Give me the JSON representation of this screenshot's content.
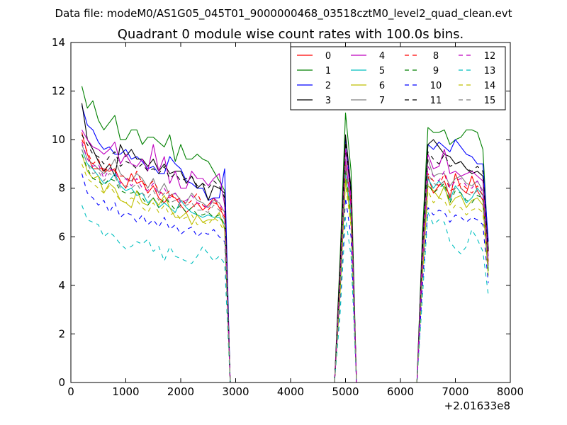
{
  "chart_data": {
    "type": "line",
    "suptitle": "Data file: modeM0/AS1G05_045T01_9000000468_03518cztM0_level2_quad_clean.evt",
    "title": "Quadrant 0 module wise count rates with 100.0s bins.",
    "xlabel": "",
    "ylabel": "",
    "x_offset_label": "+2.01633e8",
    "xlim": [
      0,
      8000
    ],
    "ylim": [
      0,
      14
    ],
    "xticks": [
      0,
      1000,
      2000,
      3000,
      4000,
      5000,
      6000,
      7000,
      8000
    ],
    "yticks": [
      0,
      2,
      4,
      6,
      8,
      10,
      12,
      14
    ],
    "grid": false,
    "legend_position": "top-right",
    "x": [
      200,
      300,
      400,
      500,
      600,
      700,
      800,
      900,
      1000,
      1100,
      1200,
      1300,
      1400,
      1500,
      1600,
      1700,
      1800,
      1900,
      2000,
      2100,
      2200,
      2300,
      2400,
      2500,
      2600,
      2700,
      2800,
      2900,
      3000,
      4800,
      4900,
      5000,
      5100,
      5200,
      6300,
      6400,
      6500,
      6600,
      6700,
      6800,
      6900,
      7000,
      7100,
      7200,
      7300,
      7400,
      7500,
      7600
    ],
    "series": [
      {
        "name": "0",
        "color": "#ff0000",
        "dash": "solid",
        "values": [
          10.3,
          9.4,
          8.8,
          8.8,
          8.8,
          8.7,
          8.8,
          8.3,
          8.0,
          8.6,
          8.2,
          8.3,
          7.8,
          8.1,
          7.6,
          7.4,
          7.7,
          7.6,
          7.3,
          7.0,
          7.2,
          7.4,
          7.1,
          7.3,
          7.6,
          7.2,
          6.8,
          0.0,
          0.0,
          0.0,
          4.0,
          9.0,
          7.4,
          0.0,
          0.0,
          4.9,
          8.5,
          7.8,
          8.1,
          8.3,
          7.6,
          8.6,
          8.0,
          7.8,
          8.5,
          7.9,
          7.5,
          4.8
        ]
      },
      {
        "name": "1",
        "color": "#008000",
        "dash": "solid",
        "values": [
          12.2,
          11.3,
          11.6,
          10.8,
          10.4,
          10.7,
          11.0,
          10.0,
          10.0,
          10.4,
          10.4,
          9.8,
          10.1,
          10.1,
          9.9,
          9.7,
          10.2,
          9.1,
          9.8,
          9.2,
          9.2,
          9.4,
          9.2,
          9.1,
          8.7,
          8.3,
          7.9,
          0.0,
          0.0,
          0.0,
          5.1,
          11.1,
          8.7,
          0.0,
          0.0,
          6.1,
          10.5,
          10.3,
          10.3,
          10.4,
          9.8,
          10.0,
          10.1,
          10.4,
          10.4,
          10.3,
          9.6,
          5.5
        ]
      },
      {
        "name": "2",
        "color": "#0000ff",
        "dash": "solid",
        "values": [
          11.4,
          10.6,
          10.4,
          9.9,
          9.6,
          9.7,
          9.4,
          9.4,
          9.6,
          9.2,
          9.3,
          9.1,
          8.8,
          8.9,
          8.6,
          8.6,
          9.3,
          9.0,
          8.8,
          8.3,
          8.2,
          8.0,
          8.0,
          7.5,
          7.6,
          7.6,
          8.8,
          0.0,
          0.0,
          0.0,
          4.6,
          10.1,
          7.7,
          0.0,
          0.0,
          5.6,
          9.8,
          9.6,
          9.9,
          9.7,
          9.5,
          10.0,
          9.7,
          9.4,
          9.3,
          9.0,
          9.0,
          5.8
        ]
      },
      {
        "name": "3",
        "color": "#000000",
        "dash": "solid",
        "values": [
          11.5,
          10.0,
          9.6,
          9.1,
          8.7,
          9.0,
          8.5,
          9.8,
          9.3,
          9.6,
          9.2,
          9.2,
          8.9,
          9.2,
          8.7,
          9.0,
          8.6,
          8.7,
          8.7,
          8.2,
          8.5,
          8.0,
          8.2,
          7.5,
          8.1,
          8.0,
          7.8,
          0.0,
          0.0,
          0.0,
          4.8,
          10.2,
          8.0,
          0.0,
          0.0,
          5.7,
          9.8,
          10.0,
          9.7,
          9.4,
          9.3,
          9.0,
          9.1,
          8.8,
          8.6,
          8.7,
          8.5,
          5.4
        ]
      },
      {
        "name": "4",
        "color": "#bf00bf",
        "dash": "solid",
        "values": [
          10.4,
          10.0,
          9.7,
          9.6,
          9.4,
          9.6,
          9.9,
          9.0,
          9.4,
          9.0,
          8.9,
          9.2,
          8.7,
          9.8,
          8.7,
          9.3,
          8.2,
          8.7,
          8.0,
          8.0,
          8.7,
          8.4,
          8.4,
          8.1,
          8.4,
          8.6,
          7.3,
          0.0,
          0.0,
          0.0,
          4.4,
          9.6,
          7.6,
          0.0,
          0.0,
          5.4,
          9.4,
          8.8,
          8.9,
          9.6,
          8.6,
          8.7,
          8.5,
          8.6,
          8.7,
          8.5,
          8.3,
          5.2
        ]
      },
      {
        "name": "5",
        "color": "#00bfbf",
        "dash": "solid",
        "values": [
          9.6,
          9.0,
          8.8,
          8.5,
          8.2,
          8.3,
          8.6,
          8.1,
          7.9,
          8.0,
          7.7,
          7.8,
          7.4,
          7.6,
          7.2,
          7.4,
          7.2,
          7.0,
          7.5,
          7.2,
          7.0,
          6.9,
          6.8,
          6.9,
          6.8,
          6.8,
          6.5,
          0.0,
          0.0,
          0.0,
          3.8,
          8.6,
          6.9,
          0.0,
          0.0,
          4.6,
          8.4,
          8.0,
          8.3,
          8.0,
          7.5,
          8.1,
          7.8,
          7.4,
          7.6,
          8.0,
          7.7,
          4.7
        ]
      },
      {
        "name": "6",
        "color": "#bfbf00",
        "dash": "solid",
        "values": [
          9.4,
          8.7,
          8.4,
          8.5,
          7.8,
          8.2,
          8.0,
          7.5,
          7.4,
          7.2,
          7.9,
          7.4,
          7.3,
          7.6,
          7.3,
          7.7,
          7.2,
          6.8,
          6.8,
          7.0,
          6.5,
          6.9,
          6.6,
          6.7,
          6.7,
          7.0,
          6.3,
          0.0,
          0.0,
          0.0,
          3.6,
          8.4,
          6.6,
          0.0,
          0.0,
          4.4,
          8.1,
          7.9,
          7.6,
          8.1,
          7.3,
          7.6,
          7.7,
          7.2,
          7.5,
          7.6,
          7.3,
          4.4
        ]
      },
      {
        "name": "7",
        "color": "#808080",
        "dash": "solid",
        "values": [
          9.8,
          9.2,
          9.0,
          8.8,
          8.6,
          8.8,
          9.2,
          8.6,
          8.4,
          8.3,
          8.6,
          8.4,
          8.0,
          8.4,
          7.8,
          8.2,
          7.7,
          7.8,
          7.5,
          7.4,
          7.8,
          7.5,
          7.4,
          7.2,
          7.5,
          7.4,
          7.0,
          0.0,
          0.0,
          0.0,
          4.1,
          9.2,
          7.2,
          0.0,
          0.0,
          5.0,
          9.2,
          8.5,
          8.6,
          8.6,
          8.1,
          8.4,
          8.5,
          8.2,
          8.1,
          8.3,
          7.9,
          5.0
        ]
      },
      {
        "name": "8",
        "color": "#ff0000",
        "dash": "dashed",
        "values": [
          10.0,
          9.5,
          9.0,
          9.2,
          8.6,
          9.0,
          8.7,
          8.5,
          8.5,
          8.2,
          8.7,
          8.2,
          8.1,
          8.3,
          7.9,
          7.7,
          7.9,
          7.5,
          7.6,
          7.3,
          7.5,
          7.8,
          7.3,
          7.1,
          7.4,
          7.3,
          6.9,
          0.0,
          0.0,
          0.0,
          4.2,
          9.0,
          7.3,
          0.0,
          0.0,
          4.8,
          8.6,
          8.3,
          8.1,
          8.6,
          7.9,
          8.0,
          8.2,
          8.0,
          7.8,
          8.1,
          7.7,
          4.9
        ]
      },
      {
        "name": "9",
        "color": "#008000",
        "dash": "dashed",
        "values": [
          9.4,
          8.8,
          8.4,
          8.3,
          8.1,
          8.4,
          8.3,
          7.9,
          7.8,
          7.8,
          7.9,
          7.6,
          7.3,
          7.6,
          7.2,
          7.6,
          7.4,
          7.1,
          7.3,
          7.0,
          7.2,
          6.9,
          6.9,
          7.0,
          6.8,
          6.9,
          6.5,
          0.0,
          0.0,
          0.0,
          3.9,
          8.8,
          6.8,
          0.0,
          0.0,
          4.6,
          8.2,
          7.8,
          8.0,
          8.2,
          7.4,
          7.9,
          7.8,
          7.5,
          7.4,
          7.7,
          7.6,
          4.6
        ]
      },
      {
        "name": "10",
        "color": "#0000ff",
        "dash": "dashed",
        "values": [
          8.6,
          7.8,
          7.6,
          7.3,
          7.5,
          7.0,
          7.4,
          6.8,
          7.0,
          6.9,
          6.6,
          6.9,
          6.5,
          6.7,
          6.4,
          6.8,
          6.3,
          6.5,
          6.1,
          6.3,
          6.4,
          6.0,
          6.2,
          6.1,
          6.3,
          6.0,
          5.8,
          0.0,
          0.0,
          0.0,
          3.3,
          7.6,
          6.0,
          0.0,
          0.0,
          4.0,
          7.2,
          6.9,
          7.1,
          7.0,
          6.6,
          6.9,
          6.8,
          6.6,
          6.8,
          6.7,
          6.5,
          4.1
        ]
      },
      {
        "name": "11",
        "color": "#000000",
        "dash": "dashed",
        "values": [
          10.2,
          9.8,
          9.4,
          9.3,
          9.0,
          9.3,
          9.5,
          8.9,
          9.1,
          9.0,
          8.8,
          9.0,
          8.7,
          8.8,
          8.6,
          8.9,
          8.4,
          8.6,
          8.3,
          8.4,
          8.5,
          8.1,
          8.2,
          8.0,
          8.3,
          8.1,
          7.6,
          0.0,
          0.0,
          0.0,
          4.5,
          9.9,
          7.8,
          0.0,
          0.0,
          5.4,
          9.5,
          9.2,
          9.0,
          9.4,
          8.9,
          9.0,
          9.1,
          8.8,
          8.7,
          8.9,
          8.7,
          5.3
        ]
      },
      {
        "name": "12",
        "color": "#bf00bf",
        "dash": "dashed",
        "values": [
          9.9,
          9.2,
          8.9,
          9.0,
          8.4,
          8.8,
          8.7,
          8.2,
          8.4,
          8.1,
          8.4,
          8.0,
          7.9,
          8.2,
          7.7,
          8.0,
          7.6,
          7.8,
          7.4,
          7.5,
          7.7,
          7.4,
          7.3,
          7.2,
          7.6,
          7.4,
          7.0,
          0.0,
          0.0,
          0.0,
          4.1,
          9.1,
          7.2,
          0.0,
          0.0,
          4.9,
          8.9,
          8.5,
          8.3,
          8.7,
          8.0,
          8.3,
          8.4,
          8.1,
          8.0,
          8.3,
          7.8,
          4.9
        ]
      },
      {
        "name": "13",
        "color": "#00bfbf",
        "dash": "dashed",
        "values": [
          7.3,
          6.7,
          6.6,
          6.5,
          6.0,
          6.2,
          6.0,
          5.7,
          5.5,
          5.6,
          5.8,
          5.7,
          5.9,
          5.4,
          5.6,
          5.0,
          5.6,
          5.2,
          5.1,
          5.0,
          4.9,
          5.2,
          5.6,
          5.3,
          5.0,
          5.2,
          4.9,
          0.0,
          0.0,
          0.0,
          2.8,
          6.8,
          5.2,
          0.0,
          0.0,
          3.5,
          7.0,
          6.5,
          6.7,
          6.6,
          5.8,
          5.5,
          5.3,
          5.6,
          6.3,
          5.9,
          5.4,
          3.6
        ]
      },
      {
        "name": "14",
        "color": "#bfbf00",
        "dash": "dashed",
        "values": [
          9.0,
          8.4,
          8.2,
          8.0,
          7.8,
          8.1,
          7.8,
          7.5,
          7.4,
          7.6,
          7.5,
          7.2,
          7.0,
          7.4,
          7.0,
          7.3,
          6.9,
          7.0,
          6.7,
          6.8,
          6.9,
          6.5,
          6.6,
          6.5,
          6.8,
          6.6,
          6.2,
          0.0,
          0.0,
          0.0,
          3.6,
          8.2,
          6.4,
          0.0,
          0.0,
          4.3,
          7.9,
          7.4,
          7.6,
          7.5,
          7.0,
          7.3,
          7.2,
          6.9,
          7.1,
          7.2,
          7.0,
          4.4
        ]
      },
      {
        "name": "15",
        "color": "#808080",
        "dash": "dashed",
        "values": [
          9.6,
          9.0,
          8.6,
          8.7,
          8.3,
          8.6,
          8.5,
          8.0,
          8.1,
          8.0,
          8.2,
          7.8,
          7.6,
          7.9,
          7.5,
          7.8,
          7.4,
          7.5,
          7.2,
          7.3,
          7.4,
          7.1,
          7.1,
          7.0,
          7.3,
          7.1,
          6.7,
          0.0,
          0.0,
          0.0,
          4.0,
          8.9,
          7.0,
          0.0,
          0.0,
          4.7,
          8.6,
          8.2,
          8.1,
          8.3,
          7.7,
          8.0,
          8.0,
          7.8,
          7.7,
          7.9,
          7.5,
          4.7
        ]
      }
    ]
  }
}
